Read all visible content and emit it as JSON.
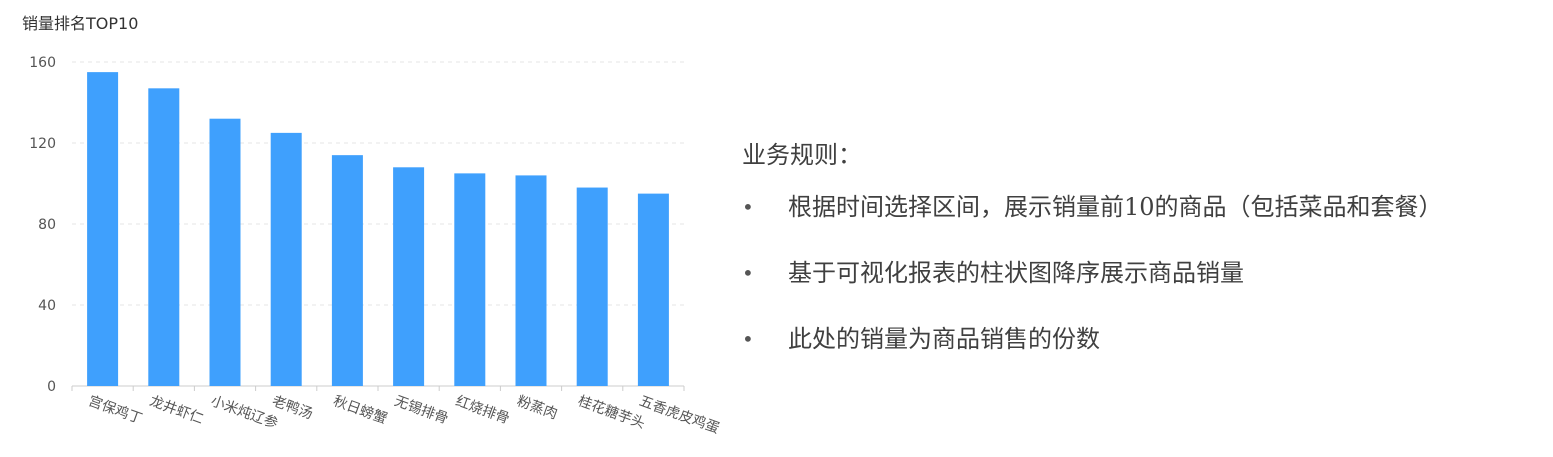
{
  "chart_data": {
    "type": "bar",
    "title": "销量排名TOP10",
    "categories": [
      "宫保鸡丁",
      "龙井虾仁",
      "小米炖辽参",
      "老鸭汤",
      "秋日螃蟹",
      "无锡排骨",
      "红烧排骨",
      "粉蒸肉",
      "桂花糖芋头",
      "五香虎皮鸡蛋"
    ],
    "values": [
      155,
      147,
      132,
      125,
      114,
      108,
      105,
      104,
      98,
      95
    ],
    "ylim": [
      0,
      160
    ],
    "yticks": [
      0,
      40,
      80,
      120,
      160
    ],
    "xlabel": "",
    "ylabel": "",
    "grid": true,
    "bar_color": "#3fa0fd",
    "grid_color": "#e6e6e6",
    "axis_color": "#cccccc",
    "label_color": "#555555"
  },
  "rules": {
    "heading": "业务规则：",
    "bullet": "•",
    "items": [
      "根据时间选择区间，展示销量前10的商品（包括菜品和套餐）",
      "基于可视化报表的柱状图降序展示商品销量",
      "此处的销量为商品销售的份数"
    ]
  }
}
